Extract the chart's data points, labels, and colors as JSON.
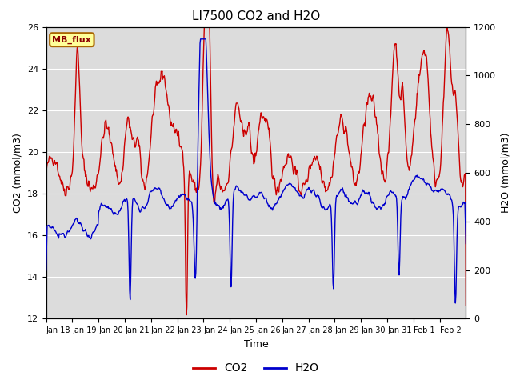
{
  "title": "LI7500 CO2 and H2O",
  "xlabel": "Time",
  "ylabel_left": "CO2 (mmol/m3)",
  "ylabel_right": "H2O (mmol/m3)",
  "ylim_left": [
    12,
    26
  ],
  "ylim_right": [
    0,
    1200
  ],
  "yticks_left": [
    12,
    14,
    16,
    18,
    20,
    22,
    24,
    26
  ],
  "yticks_right": [
    0,
    200,
    400,
    600,
    800,
    1000,
    1200
  ],
  "xtick_labels": [
    "Jan 18",
    "Jan 19",
    "Jan 20",
    "Jan 21",
    "Jan 22",
    "Jan 23",
    "Jan 24",
    "Jan 25",
    "Jan 26",
    "Jan 27",
    "Jan 28",
    "Jan 29",
    "Jan 30",
    "Jan 31",
    "Feb 1",
    "Feb 2"
  ],
  "co2_color": "#cc0000",
  "h2o_color": "#0000cc",
  "background_gray": "#dcdcdc",
  "annotation_text": "MB_flux",
  "annotation_bg": "#ffff99",
  "annotation_border": "#aa6600",
  "legend_co2": "CO2",
  "legend_h2o": "H2O",
  "grid_color": "#ffffff",
  "line_width": 1.0,
  "figsize": [
    6.4,
    4.8
  ],
  "dpi": 100
}
